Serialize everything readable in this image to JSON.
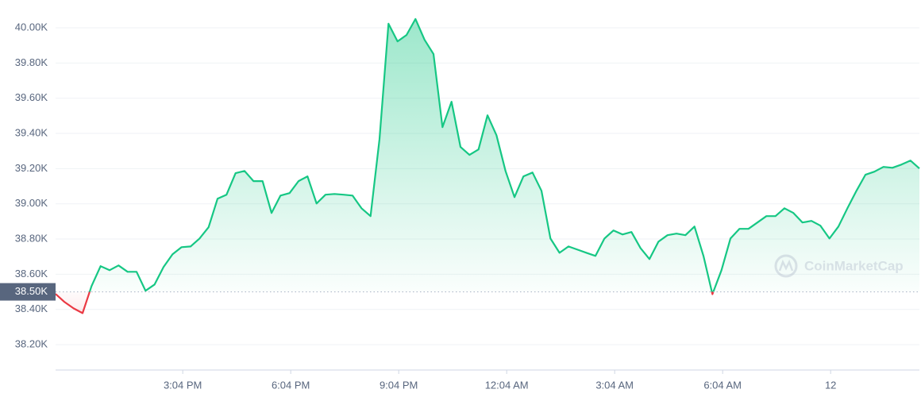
{
  "chart_data": {
    "type": "line",
    "watermark": "CoinMarketCap",
    "baseline": {
      "value": 38500,
      "label": "38.50K"
    },
    "up_color": "#16c784",
    "down_color": "#ea3943",
    "grid": true,
    "xlim": [
      692,
      2132
    ],
    "xticks": [
      {
        "value": 904,
        "label": "3:04 PM"
      },
      {
        "value": 1084,
        "label": "6:04 PM"
      },
      {
        "value": 1264,
        "label": "9:04 PM"
      },
      {
        "value": 1444,
        "label": "12:04 AM"
      },
      {
        "value": 1624,
        "label": "3:04 AM"
      },
      {
        "value": 1804,
        "label": "6:04 AM"
      },
      {
        "value": 1984,
        "label": "12"
      }
    ],
    "ylim": [
      38056,
      40158
    ],
    "yticks": [
      {
        "value": 38200,
        "label": "38.20K"
      },
      {
        "value": 38400,
        "label": "38.40K"
      },
      {
        "value": 38600,
        "label": "38.60K"
      },
      {
        "value": 38800,
        "label": "38.80K"
      },
      {
        "value": 39000,
        "label": "39.00K"
      },
      {
        "value": 39200,
        "label": "39.20K"
      },
      {
        "value": 39400,
        "label": "39.40K"
      },
      {
        "value": 39600,
        "label": "39.60K"
      },
      {
        "value": 39800,
        "label": "39.80K"
      },
      {
        "value": 40000,
        "label": "40.00K"
      }
    ],
    "x": [
      692,
      707,
      722,
      737,
      752,
      767,
      782,
      797,
      812,
      827,
      842,
      857,
      872,
      887,
      902,
      917,
      932,
      947,
      962,
      977,
      992,
      1007,
      1022,
      1037,
      1052,
      1067,
      1082,
      1097,
      1112,
      1127,
      1142,
      1157,
      1172,
      1187,
      1202,
      1217,
      1232,
      1247,
      1262,
      1277,
      1292,
      1307,
      1322,
      1337,
      1352,
      1367,
      1382,
      1397,
      1412,
      1427,
      1442,
      1457,
      1472,
      1487,
      1502,
      1517,
      1532,
      1547,
      1562,
      1577,
      1592,
      1607,
      1622,
      1637,
      1652,
      1667,
      1682,
      1697,
      1712,
      1727,
      1742,
      1757,
      1772,
      1787,
      1802,
      1817,
      1832,
      1847,
      1862,
      1877,
      1892,
      1907,
      1922,
      1937,
      1952,
      1967,
      1982,
      1997,
      2012,
      2027,
      2042,
      2057,
      2072,
      2087,
      2102,
      2117,
      2132
    ],
    "values": [
      38488,
      38442,
      38406,
      38379,
      38533,
      38646,
      38623,
      38650,
      38614,
      38614,
      38506,
      38542,
      38641,
      38713,
      38754,
      38758,
      38803,
      38867,
      39029,
      39052,
      39174,
      39187,
      39129,
      39129,
      38948,
      39047,
      39061,
      39129,
      39156,
      39002,
      39052,
      39056,
      39052,
      39047,
      38975,
      38930,
      39368,
      40023,
      39923,
      39959,
      40050,
      39932,
      39851,
      39436,
      39580,
      39323,
      39278,
      39309,
      39503,
      39390,
      39187,
      39038,
      39156,
      39178,
      39074,
      38803,
      38722,
      38758,
      38740,
      38722,
      38704,
      38803,
      38849,
      38826,
      38840,
      38749,
      38686,
      38785,
      38822,
      38831,
      38822,
      38871,
      38704,
      38487,
      38623,
      38803,
      38858,
      38858,
      38894,
      38930,
      38930,
      38975,
      38948,
      38894,
      38903,
      38876,
      38803,
      38871,
      38975,
      39074,
      39165,
      39183,
      39210,
      39205,
      39223,
      39246,
      39201
    ]
  }
}
